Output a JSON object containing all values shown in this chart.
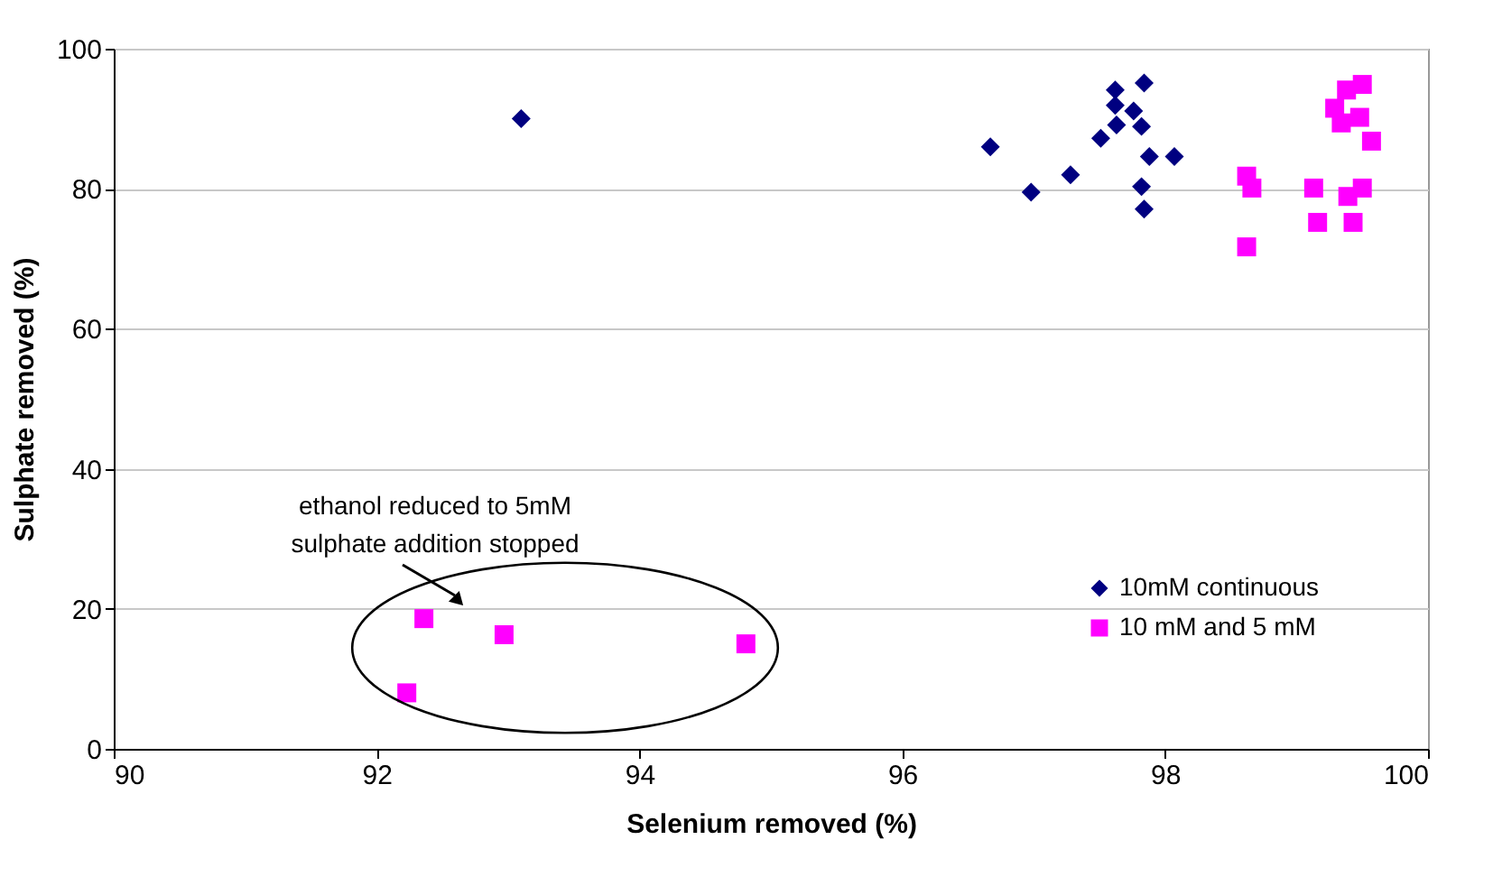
{
  "chart_data": {
    "type": "scatter",
    "xlabel": "Selenium removed (%)",
    "ylabel": "Sulphate removed (%)",
    "xlim": [
      90,
      100
    ],
    "xticks": [
      90,
      92,
      94,
      96,
      98,
      100
    ],
    "ylim": [
      0,
      100
    ],
    "yticks": [
      0,
      20,
      40,
      60,
      80,
      100
    ],
    "grid": "y",
    "legend": "bottom right",
    "annotations": [
      "ethanol reduced to  5mM",
      "sulphate addition stopped"
    ],
    "series": [
      {
        "name": "10mM continuous",
        "color": "#000080",
        "marker": "diamond",
        "x": [
          93.1,
          96.67,
          96.98,
          97.28,
          97.51,
          97.62,
          97.62,
          97.63,
          97.76,
          97.82,
          97.84,
          97.88,
          98.07,
          97.82,
          97.84
        ],
        "values": [
          90,
          86,
          79.5,
          82,
          87.2,
          94.1,
          91.9,
          89.1,
          91.1,
          88.9,
          95.1,
          84.6,
          84.6,
          80.3,
          77.1
        ]
      },
      {
        "name": "10 mM and 5 mM",
        "color": "#ff00ff",
        "marker": "square",
        "x": [
          99.5,
          99.38,
          99.29,
          99.48,
          99.34,
          99.57,
          98.62,
          98.66,
          99.13,
          99.39,
          99.5,
          99.16,
          99.43,
          98.62,
          92.36,
          92.97,
          94.81,
          92.23
        ],
        "values": [
          94.9,
          94.1,
          91.5,
          90.2,
          89.4,
          86.8,
          81.8,
          80.1,
          80.1,
          78.9,
          80.1,
          75.2,
          75.2,
          71.7,
          18.6,
          16.3,
          15.0,
          8.0
        ]
      }
    ]
  }
}
